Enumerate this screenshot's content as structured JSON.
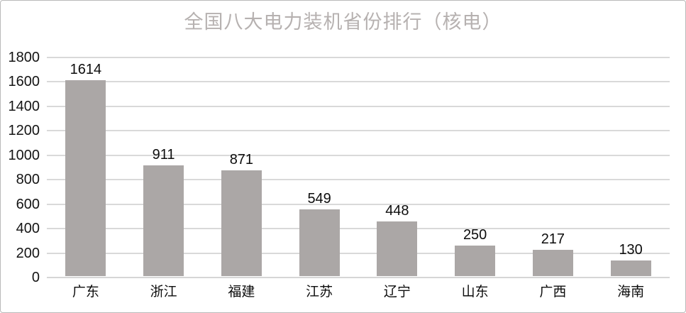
{
  "chart_data": {
    "type": "bar",
    "title": "全国八大电力装机省份排行（核电）",
    "categories": [
      "广东",
      "浙江",
      "福建",
      "江苏",
      "辽宁",
      "山东",
      "广西",
      "海南"
    ],
    "values": [
      1614,
      911,
      871,
      549,
      448,
      250,
      217,
      130
    ],
    "xlabel": "",
    "ylabel": "",
    "ylim": [
      0,
      1800
    ],
    "ytick_step": 200,
    "grid": "horizontal-only",
    "legend": "none",
    "data_labels": "above-bars",
    "colors": {
      "bar": "#ABA7A6",
      "gridline": "#D9D9D9",
      "axis_line": "#D6D6D6",
      "title_text": "#B6B1B0",
      "label_text": "#0D0D0D",
      "frame_border": "#B9B9B9"
    }
  }
}
